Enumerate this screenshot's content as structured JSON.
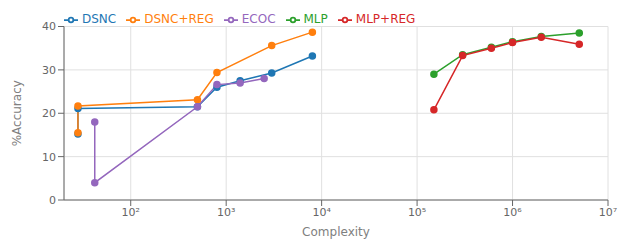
{
  "chart_data": {
    "type": "line",
    "xlabel": "Complexity",
    "ylabel": "%Accuracy",
    "log": "x",
    "xlim": [
      20,
      10000000
    ],
    "ylim": [
      0,
      40
    ],
    "xticks": [
      {
        "value": 100,
        "label": "10²"
      },
      {
        "value": 1000,
        "label": "10³"
      },
      {
        "value": 10000,
        "label": "10⁴"
      },
      {
        "value": 100000,
        "label": "10⁵"
      },
      {
        "value": 1000000,
        "label": "10⁶"
      },
      {
        "value": 10000000,
        "label": "10⁷"
      }
    ],
    "yticks": [
      0,
      10,
      20,
      30,
      40
    ],
    "grid": true,
    "legend": "upper left",
    "marker": "circle",
    "line_style": "solid",
    "series": [
      {
        "name": "DSNC",
        "color": "#1f77b4",
        "x": [
          28,
          28,
          500,
          800,
          1400,
          3000,
          8000
        ],
        "values": [
          15.2,
          21.1,
          21.5,
          26.0,
          27.5,
          29.3,
          33.2
        ]
      },
      {
        "name": "DSNC+REG",
        "color": "#ff7f0e",
        "x": [
          28,
          28,
          500,
          800,
          3000,
          8000
        ],
        "values": [
          15.5,
          21.7,
          23.1,
          29.4,
          35.6,
          38.7
        ]
      },
      {
        "name": "MLP",
        "color": "#2ca02c",
        "x": [
          150000,
          300000,
          600000,
          1000000,
          2000000,
          5000000
        ],
        "values": [
          29.0,
          33.5,
          35.2,
          36.5,
          37.7,
          38.5
        ]
      },
      {
        "name": "MLP+REG",
        "color": "#d62728",
        "x": [
          150000,
          300000,
          600000,
          1000000,
          2000000,
          5000000
        ],
        "values": [
          20.8,
          33.3,
          35.0,
          36.3,
          37.5,
          35.9
        ]
      },
      {
        "name": "ECOC",
        "color": "#9467bd",
        "x": [
          42,
          42,
          500,
          800,
          1400,
          2500
        ],
        "values": [
          18.0,
          4.0,
          21.5,
          26.6,
          27.0,
          28.0
        ]
      }
    ]
  }
}
